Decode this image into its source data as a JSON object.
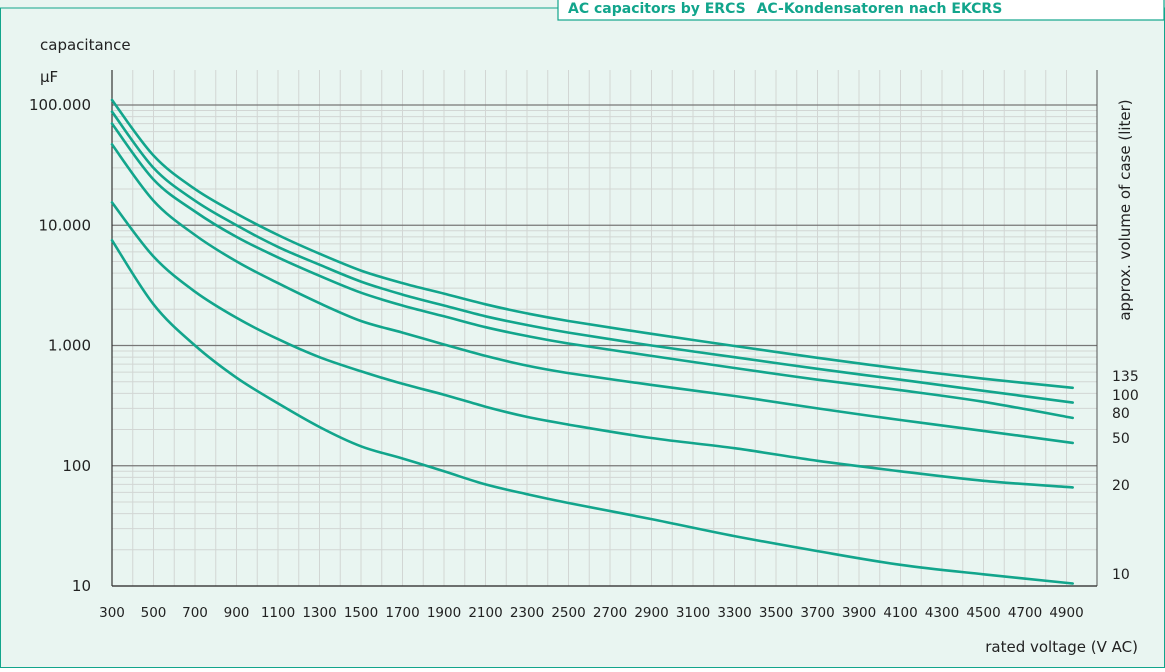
{
  "header": {
    "title_en": "AC capacitors by ERCS",
    "title_de": "AC-Kondensatoren nach EKCRS"
  },
  "colors": {
    "background": "#e9f5f1",
    "curve": "#12a58c",
    "grid_major": "#777777",
    "grid_minor": "#d2d6d4",
    "text": "#222222"
  },
  "chart_data": {
    "type": "line",
    "title": "",
    "y_label_top": "capacitance",
    "y_unit": "µF",
    "xlabel": "rated voltage (V AC)",
    "right_label": "approx. volume of case (liter)",
    "y_scale": "log",
    "ylim": [
      10,
      100000
    ],
    "xlim": [
      300,
      4950
    ],
    "grid": true,
    "x_ticks": [
      300,
      500,
      700,
      900,
      1100,
      1300,
      1500,
      1700,
      1900,
      2100,
      2300,
      2500,
      2700,
      2900,
      3100,
      3300,
      3500,
      3700,
      3900,
      4100,
      4300,
      4500,
      4700,
      4900
    ],
    "y_ticks": [
      {
        "value": 10,
        "label": "10"
      },
      {
        "value": 100,
        "label": "100"
      },
      {
        "value": 1000,
        "label": "1.000"
      },
      {
        "value": 10000,
        "label": "10.000"
      },
      {
        "value": 100000,
        "label": "100.000"
      }
    ],
    "series": [
      {
        "name": "135",
        "x": [
          300,
          500,
          700,
          900,
          1100,
          1300,
          1500,
          1700,
          1900,
          2100,
          2300,
          2500,
          2900,
          3300,
          3700,
          4100,
          4500,
          4930
        ],
        "y": [
          110000,
          38000,
          20000,
          12500,
          8300,
          5800,
          4200,
          3300,
          2700,
          2200,
          1850,
          1600,
          1250,
          990,
          790,
          640,
          530,
          445
        ]
      },
      {
        "name": "100",
        "x": [
          300,
          500,
          700,
          900,
          1100,
          1300,
          1500,
          1700,
          1900,
          2100,
          2300,
          2500,
          2900,
          3300,
          3700,
          4100,
          4500,
          4930
        ],
        "y": [
          88000,
          30000,
          16000,
          10000,
          6600,
          4700,
          3400,
          2650,
          2150,
          1750,
          1480,
          1280,
          1000,
          800,
          640,
          520,
          420,
          335
        ]
      },
      {
        "name": "80",
        "x": [
          300,
          500,
          700,
          900,
          1100,
          1300,
          1500,
          1700,
          1900,
          2100,
          2300,
          2500,
          2900,
          3300,
          3700,
          4100,
          4500,
          4930
        ],
        "y": [
          70000,
          24000,
          13000,
          8000,
          5400,
          3800,
          2750,
          2150,
          1750,
          1420,
          1200,
          1040,
          820,
          650,
          520,
          425,
          340,
          250
        ]
      },
      {
        "name": "50",
        "x": [
          300,
          500,
          700,
          900,
          1100,
          1300,
          1500,
          1700,
          1900,
          2100,
          2300,
          2500,
          2900,
          3300,
          3700,
          4100,
          4500,
          4930
        ],
        "y": [
          47000,
          16000,
          8300,
          5000,
          3300,
          2250,
          1600,
          1280,
          1020,
          820,
          680,
          590,
          470,
          380,
          300,
          240,
          195,
          155
        ]
      },
      {
        "name": "20",
        "x": [
          300,
          500,
          700,
          900,
          1100,
          1300,
          1500,
          1700,
          1900,
          2100,
          2300,
          2500,
          2900,
          3300,
          3700,
          4100,
          4500,
          4930
        ],
        "y": [
          15500,
          5500,
          2800,
          1700,
          1130,
          800,
          610,
          480,
          390,
          310,
          255,
          220,
          170,
          140,
          110,
          90,
          75,
          66
        ]
      },
      {
        "name": "10",
        "x": [
          300,
          500,
          700,
          900,
          1100,
          1300,
          1500,
          1700,
          1900,
          2100,
          2300,
          2500,
          2900,
          3300,
          3700,
          4100,
          4500,
          4930
        ],
        "y": [
          7500,
          2200,
          1000,
          540,
          330,
          210,
          145,
          115,
          90,
          70,
          58,
          49,
          36,
          26,
          19.5,
          15,
          12.5,
          10.5
        ]
      }
    ]
  }
}
